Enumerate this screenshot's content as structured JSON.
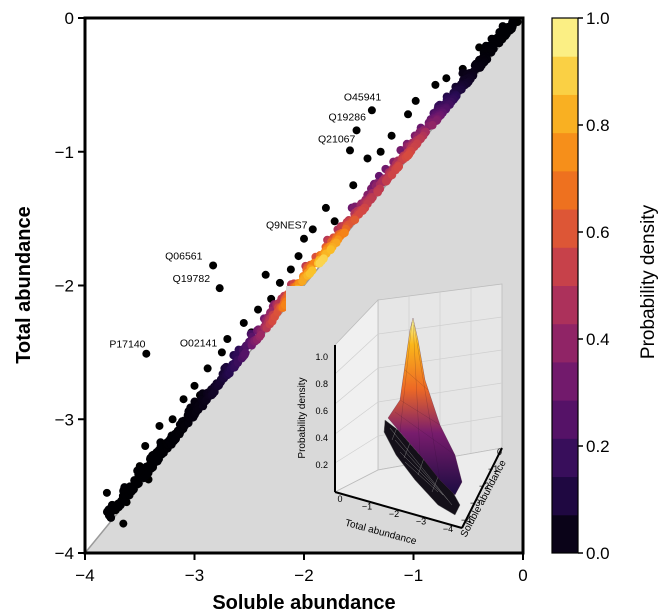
{
  "chart_data": {
    "type": "scatter",
    "xlabel": "Soluble abundance",
    "ylabel": "Total abundance",
    "xlim": [
      -4,
      0
    ],
    "ylim": [
      -4,
      0
    ],
    "x_ticks": [
      "−4",
      "−3",
      "−2",
      "−1",
      "0"
    ],
    "y_ticks": [
      "0",
      "−1",
      "−2",
      "−3",
      "−4"
    ],
    "diagonal_reference": "y = x (shaded region below)",
    "color_encoding": "probability density",
    "colormap": "inferno",
    "colorbar": {
      "label": "Probability density",
      "range": [
        0.0,
        1.0
      ],
      "ticks": [
        "0.0",
        "0.2",
        "0.4",
        "0.6",
        "0.8",
        "1.0"
      ],
      "levels": 14
    },
    "annotations": [
      {
        "label": "O45941",
        "x": -1.38,
        "y": -0.69
      },
      {
        "label": "Q19286",
        "x": -1.52,
        "y": -0.84
      },
      {
        "label": "Q21067",
        "x": -1.58,
        "y": -0.99
      },
      {
        "label": "Q9NES7",
        "x": -2.0,
        "y": -1.65
      },
      {
        "label": "Q06561",
        "x": -2.83,
        "y": -1.85
      },
      {
        "label": "Q19782",
        "x": -2.77,
        "y": -2.02
      },
      {
        "label": "P17140",
        "x": -3.44,
        "y": -2.51
      },
      {
        "label": "O02141",
        "x": -2.75,
        "y": -2.5
      }
    ],
    "outliers": [
      [
        -3.8,
        -3.55
      ],
      [
        -3.72,
        -3.68
      ],
      [
        -3.62,
        -3.62
      ],
      [
        -3.55,
        -3.5
      ],
      [
        -3.5,
        -3.35
      ],
      [
        -3.45,
        -3.2
      ],
      [
        -3.35,
        -3.28
      ],
      [
        -3.32,
        -3.05
      ],
      [
        -3.2,
        -3.0
      ],
      [
        -3.1,
        -2.85
      ],
      [
        -3.0,
        -2.75
      ],
      [
        -2.95,
        -2.82
      ],
      [
        -2.88,
        -2.62
      ],
      [
        -2.7,
        -2.4
      ],
      [
        -2.55,
        -2.28
      ],
      [
        -2.48,
        -2.35
      ],
      [
        -2.42,
        -2.18
      ],
      [
        -2.35,
        -1.92
      ],
      [
        -2.3,
        -2.1
      ],
      [
        -2.22,
        -1.98
      ],
      [
        -2.12,
        -1.88
      ],
      [
        -2.05,
        -1.78
      ],
      [
        -1.92,
        -1.58
      ],
      [
        -1.8,
        -1.42
      ],
      [
        -1.72,
        -1.52
      ],
      [
        -1.55,
        -1.25
      ],
      [
        -1.42,
        -1.05
      ],
      [
        -1.3,
        -1.0
      ],
      [
        -1.2,
        -0.88
      ],
      [
        -1.05,
        -0.72
      ],
      [
        -0.98,
        -0.62
      ],
      [
        -0.8,
        -0.5
      ],
      [
        -0.7,
        -0.45
      ],
      [
        -0.55,
        -0.38
      ],
      [
        -0.4,
        -0.22
      ],
      [
        -0.1,
        -0.06
      ],
      [
        -0.05,
        -0.03
      ],
      [
        -3.65,
        -3.78
      ],
      [
        -3.42,
        -3.45
      ],
      [
        -3.25,
        -3.22
      ],
      [
        -2.6,
        -2.55
      ]
    ],
    "inset": {
      "type": "surface3d",
      "xlabel": "Total abundance",
      "ylabel": "Soluble abundance",
      "zlabel": "Probability density",
      "x_ticks": [
        "0",
        "−1",
        "−2",
        "−3",
        "−4"
      ],
      "y_ticks": [
        "0",
        "−1",
        "−2",
        "−3",
        "−4"
      ],
      "z_ticks": [
        "0.2",
        "0.4",
        "0.6",
        "0.8",
        "1.0"
      ]
    }
  }
}
